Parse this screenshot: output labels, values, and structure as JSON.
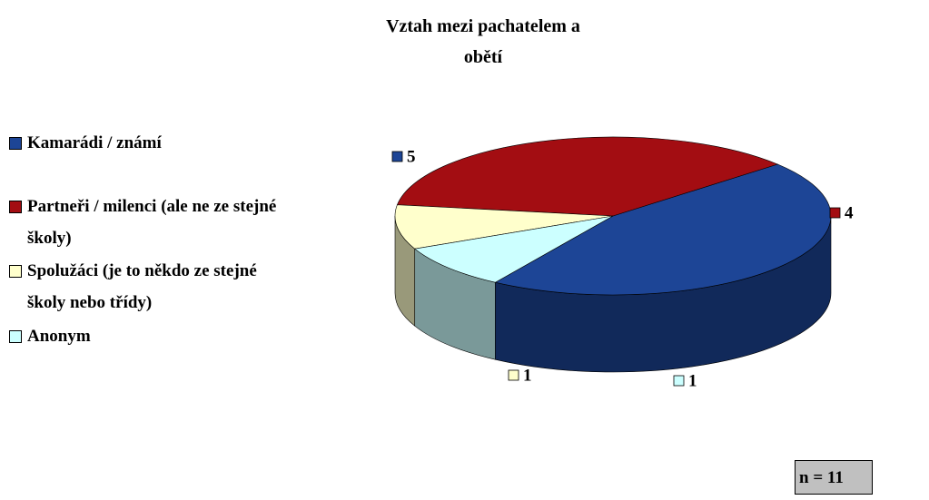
{
  "chart_data": {
    "type": "pie",
    "title": "Vztah mezi pachatelem a obětí",
    "categories": [
      "Kamarádi / známí",
      "Partneři / milenci (ale ne ze stejné školy)",
      "Spolužáci (je to někdo ze stejné školy nebo třídy)",
      "Anonym"
    ],
    "values": [
      5,
      4,
      1,
      1
    ],
    "colors": [
      "#1d4596",
      "#a30d12",
      "#ffffcc",
      "#ccffff"
    ],
    "annotation": "n = 11"
  }
}
